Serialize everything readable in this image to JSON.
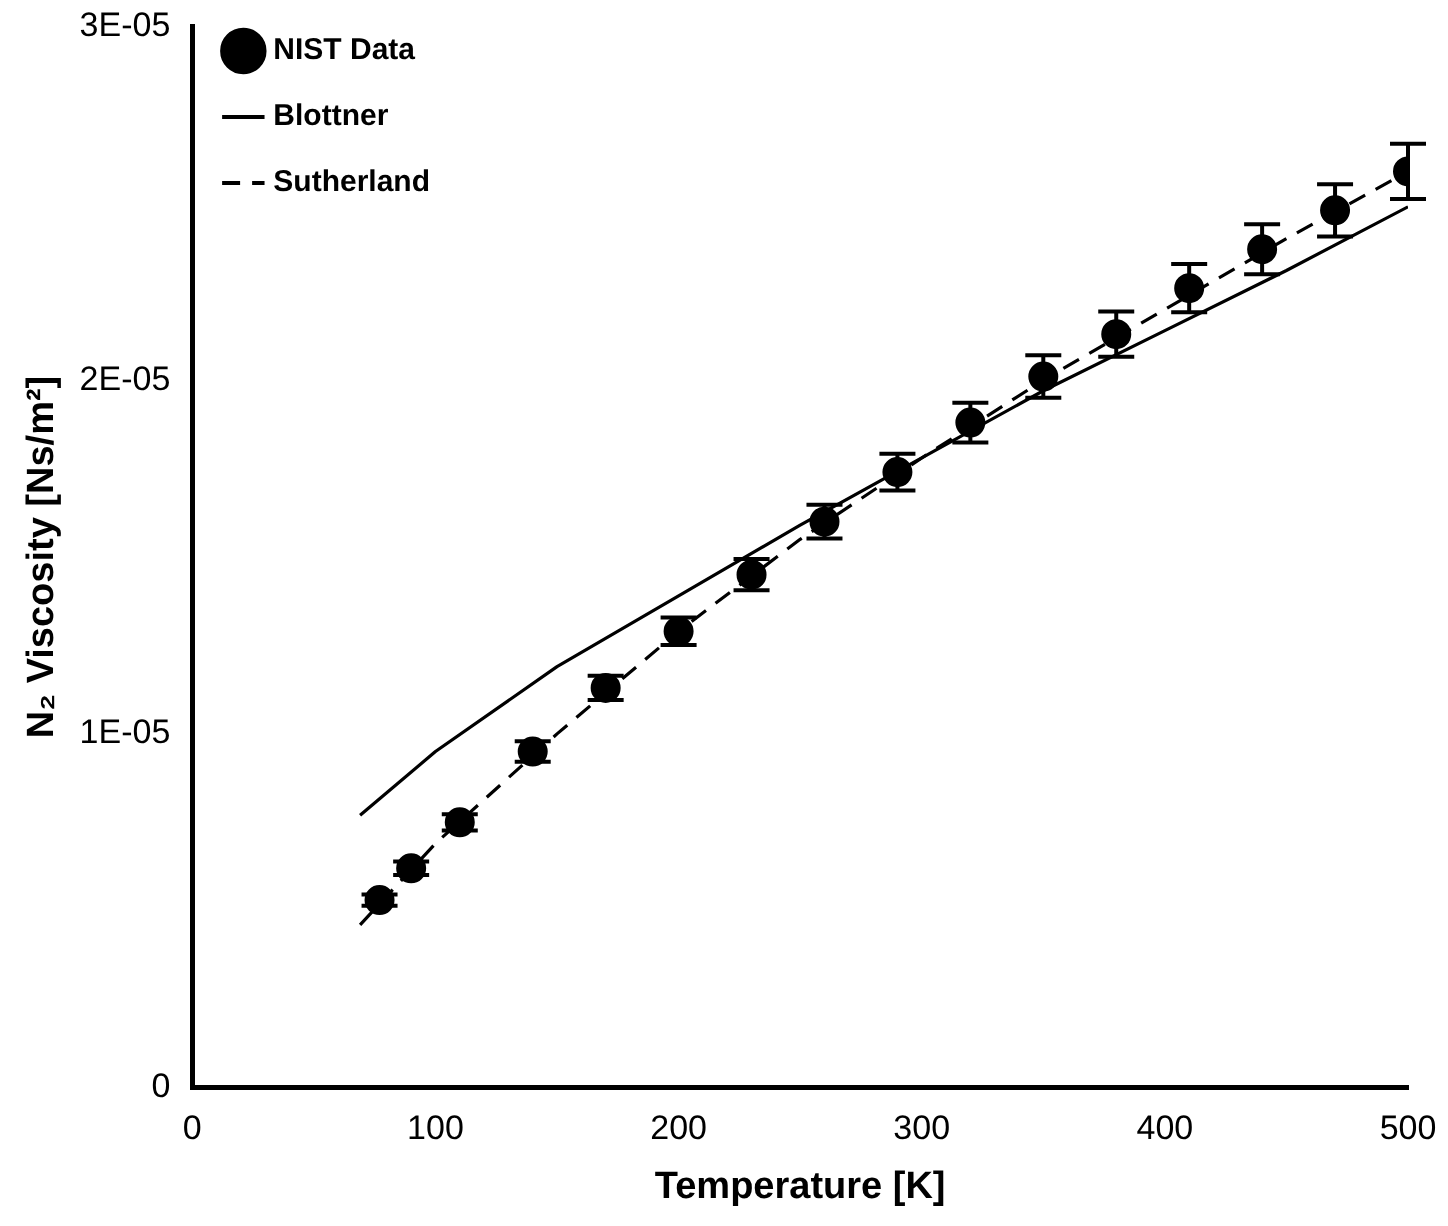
{
  "chart_data": {
    "type": "line",
    "xlabel": "Temperature [K]",
    "ylabel": "N₂ Viscosity [Ns/m²]",
    "xlim": [
      0,
      500
    ],
    "xticks": [
      0,
      100,
      200,
      300,
      400,
      500
    ],
    "ylim": [
      0,
      3e-05
    ],
    "yticks": [
      0,
      {
        "value": 1e-05,
        "label": "1E-05"
      },
      {
        "value": 2e-05,
        "label": "2E-05"
      },
      {
        "value": 3e-05,
        "label": "3E-05"
      }
    ],
    "legend": "top left",
    "series": [
      {
        "name": "NIST Data",
        "type": "scatter",
        "color": "#000000",
        "marker": "circle",
        "x": [
          77,
          90,
          110,
          140,
          170,
          200,
          230,
          260,
          290,
          320,
          350,
          380,
          410,
          440,
          470,
          500
        ],
        "values": [
          5.3e-06,
          6.2e-06,
          7.5e-06,
          9.5e-06,
          1.13e-05,
          1.29e-05,
          1.45e-05,
          1.6e-05,
          1.74e-05,
          1.88e-05,
          2.01e-05,
          2.13e-05,
          2.26e-05,
          2.37e-05,
          2.48e-05,
          2.59e-05
        ],
        "errors": [
          1.6e-07,
          1.9e-07,
          2.3e-07,
          2.9e-07,
          3.4e-07,
          3.9e-07,
          4.4e-07,
          4.8e-07,
          5.2e-07,
          5.6e-07,
          6e-07,
          6.4e-07,
          6.8e-07,
          7.1e-07,
          7.4e-07,
          7.8e-07
        ]
      },
      {
        "name": "Blottner",
        "color": "#000000",
        "line_style": "solid",
        "x": [
          69,
          100,
          150,
          200,
          250,
          300,
          350,
          400,
          450,
          500
        ],
        "values": [
          7.7e-06,
          9.5e-06,
          1.19e-05,
          1.39e-05,
          1.59e-05,
          1.78e-05,
          1.97e-05,
          2.14e-05,
          2.31e-05,
          2.49e-05
        ]
      },
      {
        "name": "Sutherland",
        "color": "#000000",
        "line_style": "dashed",
        "x": [
          69,
          100,
          150,
          200,
          250,
          300,
          350,
          400,
          450,
          500
        ],
        "values": [
          4.6e-06,
          6.9e-06,
          1e-05,
          1.29e-05,
          1.55e-05,
          1.78e-05,
          2e-05,
          2.2e-05,
          2.4e-05,
          2.59e-05
        ]
      }
    ]
  }
}
